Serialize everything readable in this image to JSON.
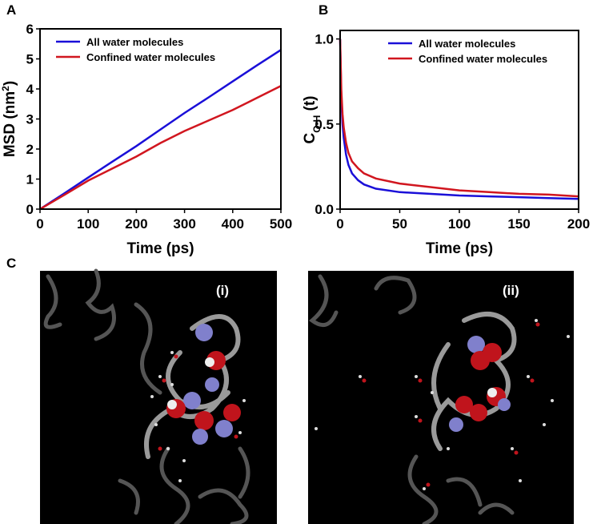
{
  "chart_data": [
    {
      "type": "line",
      "panel": "A",
      "xlabel": "Time (ps)",
      "ylabel": [
        "MSD (nm",
        "2",
        ")"
      ],
      "x": [
        0,
        50,
        100,
        150,
        200,
        250,
        300,
        350,
        400,
        450,
        500
      ],
      "series": [
        {
          "name": "All water molecules",
          "color": "#1a0fd8",
          "values": [
            0,
            0.52,
            1.05,
            1.58,
            2.1,
            2.65,
            3.2,
            3.72,
            4.25,
            4.78,
            5.3
          ]
        },
        {
          "name": "Confined water molecules",
          "color": "#d1161f",
          "values": [
            0,
            0.47,
            0.95,
            1.35,
            1.75,
            2.2,
            2.6,
            2.95,
            3.3,
            3.7,
            4.1
          ]
        }
      ],
      "xlim": [
        0,
        500
      ],
      "ylim": [
        0,
        6
      ],
      "xticks": [
        0,
        100,
        200,
        300,
        400,
        500
      ],
      "yticks": [
        0,
        1,
        2,
        3,
        4,
        5,
        6
      ],
      "legend": "upper left"
    },
    {
      "type": "line",
      "panel": "B",
      "xlabel": "Time (ps)",
      "ylabel": [
        "C",
        "O-H",
        " (t)"
      ],
      "x": [
        0,
        1,
        2,
        3,
        5,
        7,
        10,
        15,
        20,
        30,
        50,
        75,
        100,
        125,
        150,
        175,
        200
      ],
      "series": [
        {
          "name": "All water molecules",
          "color": "#1a0fd8",
          "values": [
            1.0,
            0.65,
            0.5,
            0.42,
            0.32,
            0.26,
            0.21,
            0.17,
            0.145,
            0.12,
            0.1,
            0.09,
            0.08,
            0.075,
            0.07,
            0.065,
            0.06
          ]
        },
        {
          "name": "Confined water molecules",
          "color": "#d1161f",
          "values": [
            1.0,
            0.7,
            0.56,
            0.48,
            0.39,
            0.33,
            0.28,
            0.24,
            0.21,
            0.18,
            0.15,
            0.13,
            0.11,
            0.1,
            0.09,
            0.085,
            0.075
          ]
        }
      ],
      "xlim": [
        0,
        200
      ],
      "ylim": [
        0,
        1.05
      ],
      "xticks": [
        0,
        50,
        100,
        150,
        200
      ],
      "yticks": [
        {
          "value": 0,
          "label": "0.0"
        },
        0.5,
        {
          "value": 1,
          "label": "1.0"
        }
      ],
      "legend": "upper right"
    }
  ],
  "panel_c": {
    "panel": "C",
    "images": [
      "(i)",
      "(ii)"
    ]
  }
}
